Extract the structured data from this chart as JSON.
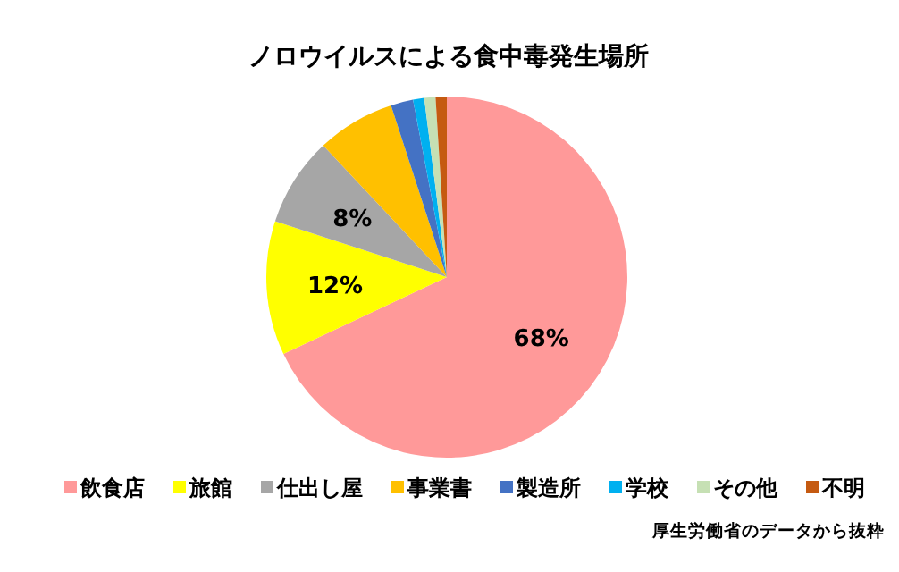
{
  "chart_data": {
    "type": "pie",
    "title": "ノロウイルスによる食中毒発生場所",
    "categories": [
      "飲食店",
      "旅館",
      "仕出し屋",
      "事業書",
      "製造所",
      "学校",
      "その他",
      "不明"
    ],
    "values": [
      68,
      12,
      8,
      7,
      2,
      1,
      1,
      1
    ],
    "value_labels": [
      "68%",
      "12%",
      "8%",
      null,
      null,
      null,
      null,
      null
    ],
    "colors": [
      "#ff9999",
      "#ffff00",
      "#a6a6a6",
      "#ffc000",
      "#4472c4",
      "#00b0f0",
      "#c6e0b4",
      "#c55a11"
    ],
    "legend": "bottom",
    "annotations": [
      "厚生労働省のデータから抜粋"
    ]
  }
}
